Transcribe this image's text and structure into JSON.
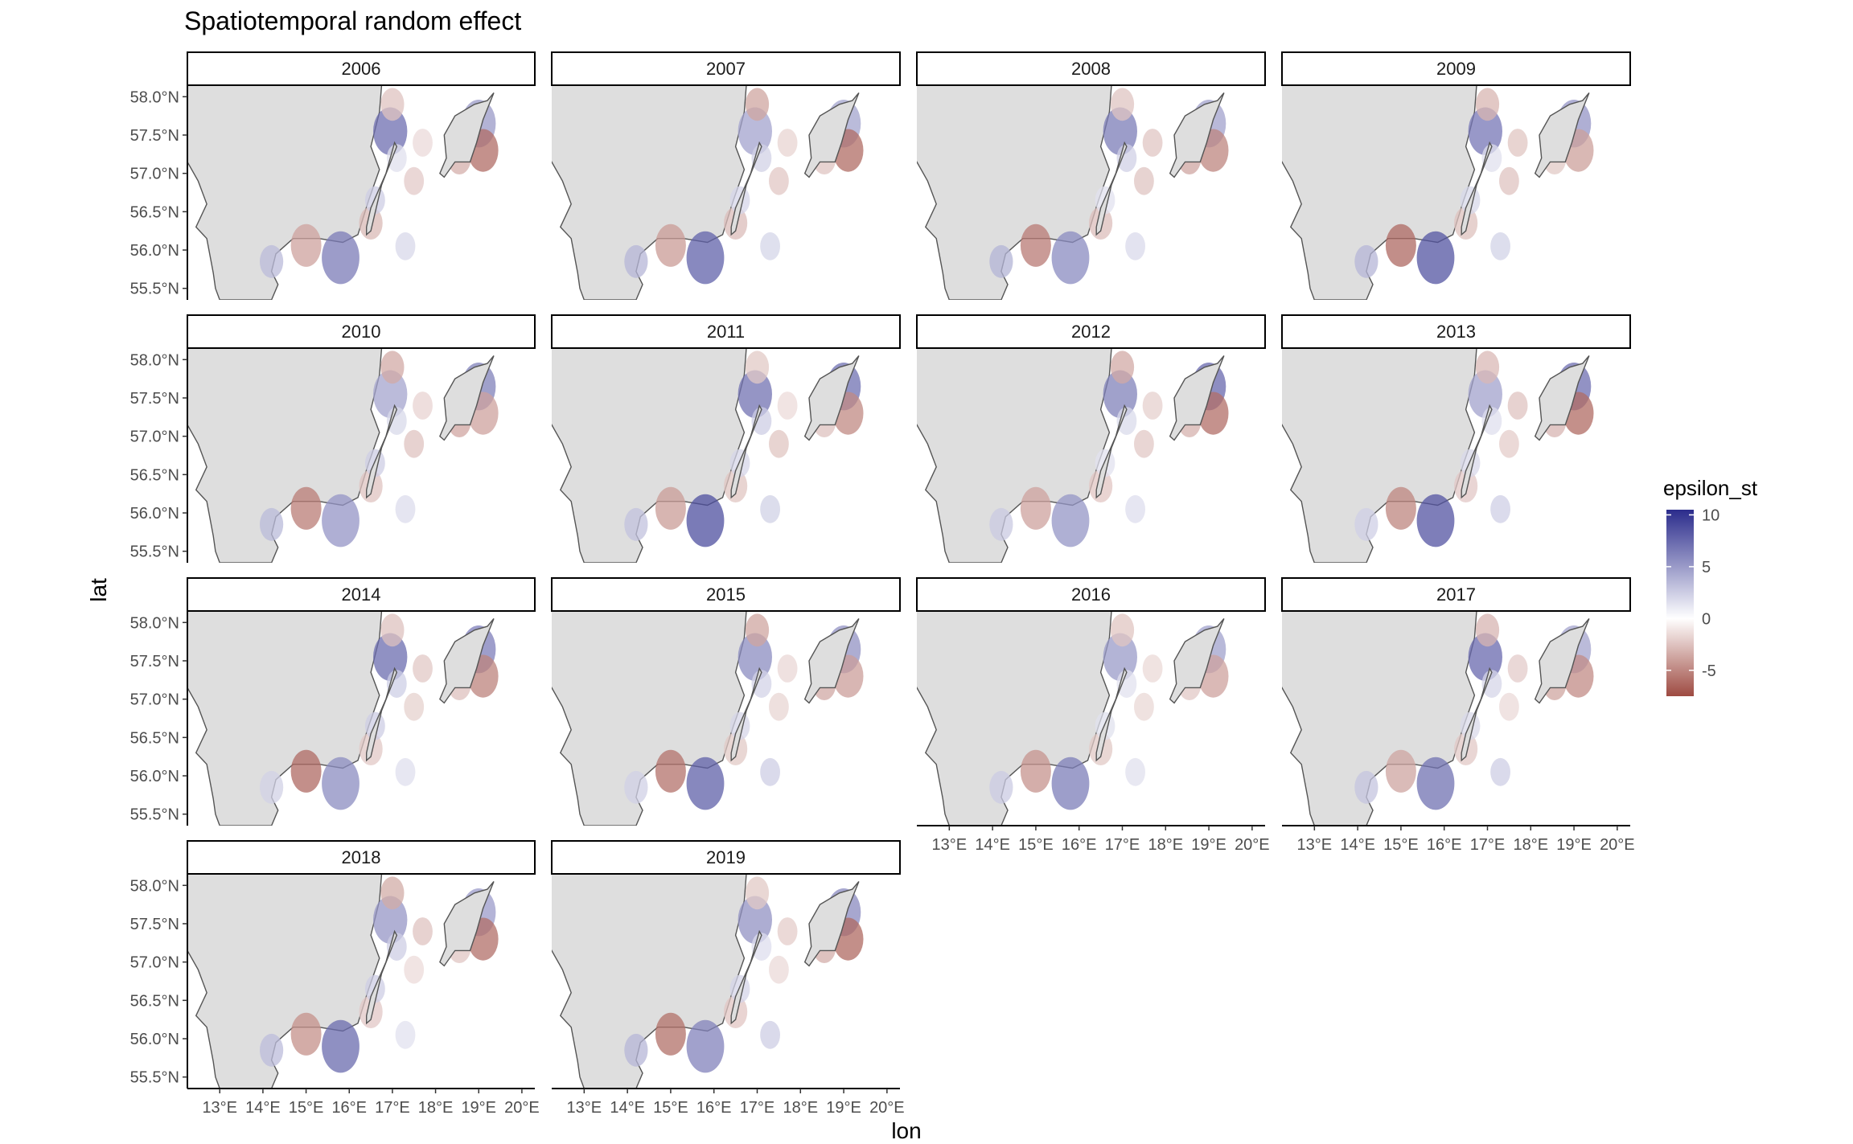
{
  "chart_data": {
    "type": "heatmap",
    "title": "Spatiotemporal random effect",
    "xlabel": "lon",
    "ylabel": "lat",
    "facets": [
      "2006",
      "2007",
      "2008",
      "2009",
      "2010",
      "2011",
      "2012",
      "2013",
      "2014",
      "2015",
      "2016",
      "2017",
      "2018",
      "2019"
    ],
    "ncol": 4,
    "x_ticks": [
      {
        "value": 13,
        "label": "13°E"
      },
      {
        "value": 14,
        "label": "14°E"
      },
      {
        "value": 15,
        "label": "15°E"
      },
      {
        "value": 16,
        "label": "16°E"
      },
      {
        "value": 17,
        "label": "17°E"
      },
      {
        "value": 18,
        "label": "18°E"
      },
      {
        "value": 19,
        "label": "19°E"
      },
      {
        "value": 20,
        "label": "20°E"
      }
    ],
    "y_ticks": [
      {
        "value": 55.5,
        "label": "55.5°N"
      },
      {
        "value": 56.0,
        "label": "56.0°N"
      },
      {
        "value": 56.5,
        "label": "56.5°N"
      },
      {
        "value": 57.0,
        "label": "57.0°N"
      },
      {
        "value": 57.5,
        "label": "57.5°N"
      },
      {
        "value": 58.0,
        "label": "58.0°N"
      }
    ],
    "xlim": [
      12.25,
      20.3
    ],
    "ylim": [
      55.35,
      58.15
    ],
    "legend": {
      "title": "epsilon_st",
      "position": "right",
      "range": [
        -7.5,
        10.5
      ],
      "ticks": [
        {
          "value": 10,
          "label": "10"
        },
        {
          "value": 5,
          "label": "5"
        },
        {
          "value": 0,
          "label": "0"
        },
        {
          "value": -5,
          "label": "-5"
        }
      ],
      "low_color": "#9e4a41",
      "mid_color": "#ffffff",
      "high_color": "#2b2c8c"
    },
    "land_color": "#dedede",
    "coast_color": "#555555",
    "grid": false,
    "effects": [
      {
        "lon": 15.8,
        "lat": 55.9,
        "value": 7
      },
      {
        "lon": 15.0,
        "lat": 56.06,
        "value": -5
      },
      {
        "lon": 14.2,
        "lat": 55.85,
        "value": 3
      },
      {
        "lon": 16.95,
        "lat": 57.55,
        "value": 6
      },
      {
        "lon": 17.0,
        "lat": 57.9,
        "value": -3
      },
      {
        "lon": 19.0,
        "lat": 57.65,
        "value": 6
      },
      {
        "lon": 19.1,
        "lat": 57.3,
        "value": -5
      },
      {
        "lon": 18.55,
        "lat": 57.2,
        "value": -3
      },
      {
        "lon": 17.1,
        "lat": 57.2,
        "value": 2
      },
      {
        "lon": 16.5,
        "lat": 56.35,
        "value": -3
      },
      {
        "lon": 16.6,
        "lat": 56.65,
        "value": 2
      },
      {
        "lon": 17.3,
        "lat": 56.05,
        "value": 2
      },
      {
        "lon": 17.7,
        "lat": 57.4,
        "value": -2
      },
      {
        "lon": 17.5,
        "lat": 56.9,
        "value": -2
      }
    ]
  }
}
